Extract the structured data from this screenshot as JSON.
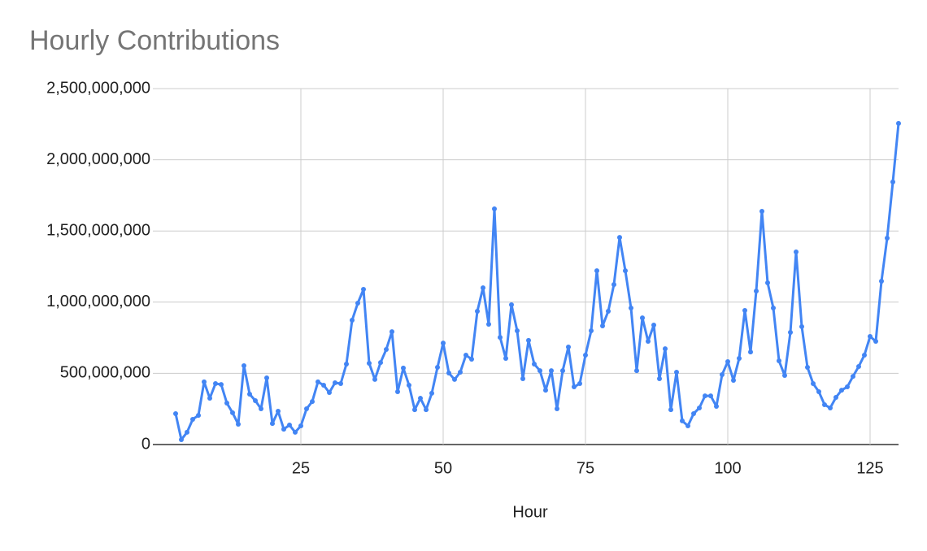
{
  "chart_data": {
    "type": "line",
    "title": "Hourly Contributions",
    "x_label": "Hour",
    "x": [
      3,
      4,
      5,
      6,
      7,
      8,
      9,
      10,
      11,
      12,
      13,
      14,
      15,
      16,
      17,
      18,
      19,
      20,
      21,
      22,
      23,
      24,
      25,
      26,
      27,
      28,
      29,
      30,
      31,
      32,
      33,
      34,
      35,
      36,
      37,
      38,
      39,
      40,
      41,
      42,
      43,
      44,
      45,
      46,
      47,
      48,
      49,
      50,
      51,
      52,
      53,
      54,
      55,
      56,
      57,
      58,
      59,
      60,
      61,
      62,
      63,
      64,
      65,
      66,
      67,
      68,
      69,
      70,
      71,
      72,
      73,
      74,
      75,
      76,
      77,
      78,
      79,
      80,
      81,
      82,
      83,
      84,
      85,
      86,
      87,
      88,
      89,
      90,
      91,
      92,
      93,
      94,
      95,
      96,
      97,
      98,
      99,
      100,
      101,
      102,
      103,
      104,
      105,
      106,
      107,
      108,
      109,
      110,
      111,
      112,
      113,
      114,
      115,
      116,
      117,
      118,
      119,
      120,
      121,
      122,
      123,
      124,
      125,
      126,
      127,
      128,
      129,
      130
    ],
    "series": [
      {
        "name": "Contributions",
        "color": "#4285f4",
        "values": [
          217000000,
          34000000,
          86000000,
          177000000,
          205000000,
          440000000,
          325000000,
          428000000,
          422000000,
          291000000,
          223000000,
          143000000,
          554000000,
          354000000,
          308000000,
          251000000,
          468000000,
          148000000,
          234000000,
          108000000,
          137000000,
          86000000,
          131000000,
          251000000,
          302000000,
          440000000,
          417000000,
          365000000,
          434000000,
          428000000,
          565000000,
          873000000,
          993000000,
          1090000000,
          571000000,
          457000000,
          576000000,
          668000000,
          793000000,
          371000000,
          537000000,
          417000000,
          245000000,
          325000000,
          245000000,
          360000000,
          542000000,
          713000000,
          502000000,
          457000000,
          508000000,
          628000000,
          599000000,
          936000000,
          1101000000,
          845000000,
          1655000000,
          753000000,
          605000000,
          982000000,
          799000000,
          462000000,
          731000000,
          565000000,
          519000000,
          382000000,
          519000000,
          251000000,
          519000000,
          685000000,
          405000000,
          428000000,
          628000000,
          799000000,
          1221000000,
          833000000,
          936000000,
          1124000000,
          1455000000,
          1221000000,
          959000000,
          519000000,
          890000000,
          725000000,
          839000000,
          462000000,
          673000000,
          245000000,
          508000000,
          166000000,
          131000000,
          217000000,
          257000000,
          342000000,
          342000000,
          268000000,
          491000000,
          582000000,
          451000000,
          605000000,
          942000000,
          650000000,
          1078000000,
          1638000000,
          1136000000,
          959000000,
          588000000,
          485000000,
          788000000,
          1353000000,
          828000000,
          542000000,
          428000000,
          371000000,
          280000000,
          257000000,
          331000000,
          382000000,
          405000000,
          479000000,
          548000000,
          628000000,
          759000000,
          725000000,
          1147000000,
          1450000000,
          1844000000,
          2255000000
        ]
      }
    ],
    "xlim": [
      -1,
      130
    ],
    "xticks": [
      25,
      50,
      75,
      100,
      125
    ],
    "ylim": [
      0,
      2500000000
    ],
    "yticks": [
      0,
      {
        "value": 500000000,
        "label": "500,000,000"
      },
      {
        "value": 1000000000,
        "label": "1,000,000,000"
      },
      {
        "value": 1500000000,
        "label": "1,500,000,000"
      },
      {
        "value": 2000000000,
        "label": "2,000,000,000"
      },
      {
        "value": 2500000000,
        "label": "2,500,000,000"
      }
    ],
    "grid": true
  }
}
